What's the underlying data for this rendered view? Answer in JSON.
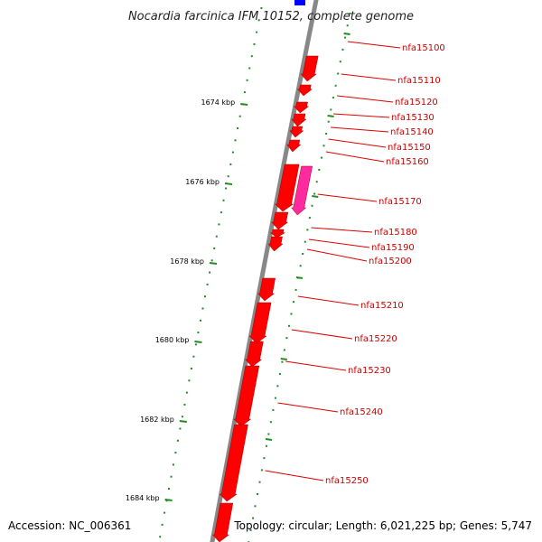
{
  "title": "Nocardia farcinica IFM 10152, complete genome",
  "footer": {
    "accession": "Accession: NC_006361",
    "summary": "Topology: circular; Length: 6,021,225 bp; Genes: 5,747"
  },
  "colors": {
    "forward_gene": "#ff0000",
    "highlight_gene": "#ff2aa0",
    "start_marker": "#0000ff",
    "backbone": "#888888",
    "tick": "#228b22",
    "label_line": "#dd0000",
    "label_text": "#cc0000"
  },
  "ruler": [
    {
      "label": "1674 kbp",
      "kbp": 1674
    },
    {
      "label": "1676 kbp",
      "kbp": 1676
    },
    {
      "label": "1678 kbp",
      "kbp": 1678
    },
    {
      "label": "1680 kbp",
      "kbp": 1680
    },
    {
      "label": "1682 kbp",
      "kbp": 1682
    },
    {
      "label": "1684 kbp",
      "kbp": 1684
    }
  ],
  "genes": [
    {
      "label": "nfa15100"
    },
    {
      "label": "nfa15110"
    },
    {
      "label": "nfa15120"
    },
    {
      "label": "nfa15130"
    },
    {
      "label": "nfa15140"
    },
    {
      "label": "nfa15150"
    },
    {
      "label": "nfa15160"
    },
    {
      "label": "nfa15170"
    },
    {
      "label": "nfa15180"
    },
    {
      "label": "nfa15190"
    },
    {
      "label": "nfa15200"
    },
    {
      "label": "nfa15210"
    },
    {
      "label": "nfa15220"
    },
    {
      "label": "nfa15230"
    },
    {
      "label": "nfa15240"
    },
    {
      "label": "nfa15250"
    }
  ]
}
